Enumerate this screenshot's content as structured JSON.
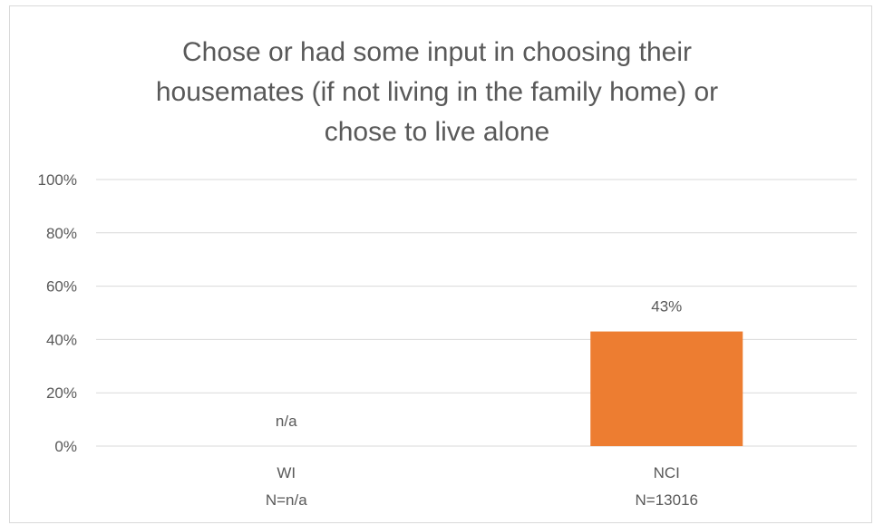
{
  "chart_data": {
    "type": "bar",
    "title_lines": [
      "Chose or had some input in choosing their",
      "housemates (if not living in the family home) or",
      "chose to live alone"
    ],
    "categories": [
      "WI",
      "NCI"
    ],
    "category_sublabels": [
      "N=n/a",
      "N=13016"
    ],
    "values": [
      null,
      43
    ],
    "data_labels": [
      "n/a",
      "43%"
    ],
    "ylim": [
      0,
      100
    ],
    "yticks": [
      0,
      20,
      40,
      60,
      80,
      100
    ],
    "ytick_labels": [
      "0%",
      "20%",
      "40%",
      "60%",
      "80%",
      "100%"
    ],
    "grid": true,
    "colors": {
      "bar": "#ED7D31",
      "grid": "#D9D9D9",
      "text": "#595959"
    }
  }
}
